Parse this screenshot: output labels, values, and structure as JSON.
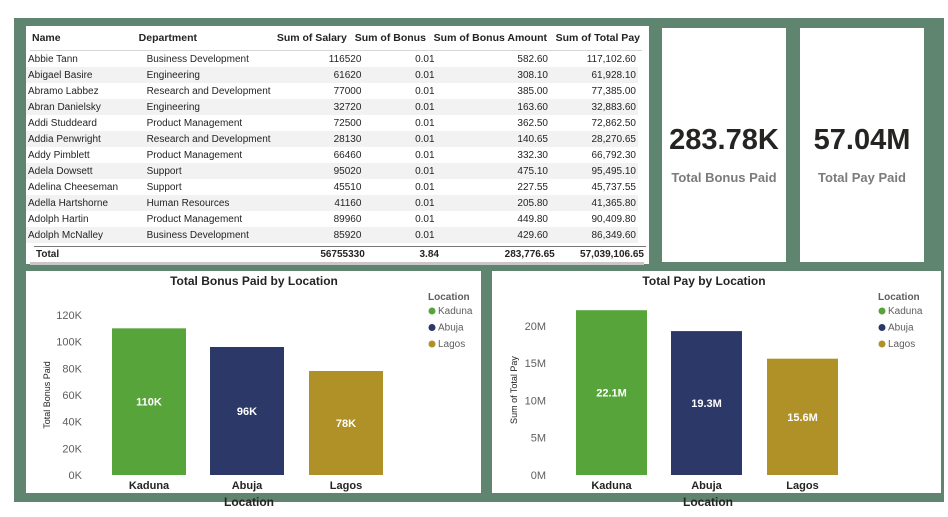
{
  "table": {
    "columns": [
      "Name",
      "Department",
      "Sum of Salary",
      "Sum of Bonus",
      "Sum of Bonus Amount",
      "Sum of Total Pay"
    ],
    "rows": [
      [
        "Abbie Tann",
        "Business Development",
        "116520",
        "0.01",
        "582.60",
        "117,102.60"
      ],
      [
        "Abigael Basire",
        "Engineering",
        "61620",
        "0.01",
        "308.10",
        "61,928.10"
      ],
      [
        "Abramo Labbez",
        "Research and Development",
        "77000",
        "0.01",
        "385.00",
        "77,385.00"
      ],
      [
        "Abran Danielsky",
        "Engineering",
        "32720",
        "0.01",
        "163.60",
        "32,883.60"
      ],
      [
        "Addi Studdeard",
        "Product Management",
        "72500",
        "0.01",
        "362.50",
        "72,862.50"
      ],
      [
        "Addia Penwright",
        "Research and Development",
        "28130",
        "0.01",
        "140.65",
        "28,270.65"
      ],
      [
        "Addy Pimblett",
        "Product Management",
        "66460",
        "0.01",
        "332.30",
        "66,792.30"
      ],
      [
        "Adela Dowsett",
        "Support",
        "95020",
        "0.01",
        "475.10",
        "95,495.10"
      ],
      [
        "Adelina Cheeseman",
        "Support",
        "45510",
        "0.01",
        "227.55",
        "45,737.55"
      ],
      [
        "Adella Hartshorne",
        "Human Resources",
        "41160",
        "0.01",
        "205.80",
        "41,365.80"
      ],
      [
        "Adolph Hartin",
        "Product Management",
        "89960",
        "0.01",
        "449.80",
        "90,409.80"
      ],
      [
        "Adolph McNalley",
        "Business Development",
        "85920",
        "0.01",
        "429.60",
        "86,349.60"
      ]
    ],
    "total": [
      "Total",
      "",
      "56755330",
      "3.84",
      "283,776.65",
      "57,039,106.65"
    ]
  },
  "kpis": {
    "bonus": {
      "value": "283.78K",
      "label": "Total Bonus Paid"
    },
    "pay": {
      "value": "57.04M",
      "label": "Total Pay Paid"
    }
  },
  "colors": {
    "Kaduna": "#56a43a",
    "Abuja": "#2c3867",
    "Lagos": "#af9127",
    "background": "#5f8470"
  },
  "chart_data": [
    {
      "type": "bar",
      "title": "Total Bonus Paid by Location",
      "xlabel": "Location",
      "ylabel": "Total Bonus Paid",
      "categories": [
        "Kaduna",
        "Abuja",
        "Lagos"
      ],
      "values": [
        110000,
        96000,
        78000
      ],
      "data_labels": [
        "110K",
        "96K",
        "78K"
      ],
      "ylim": [
        0,
        120000
      ],
      "yticks": [
        0,
        20000,
        40000,
        60000,
        80000,
        100000,
        120000
      ],
      "ytick_labels": [
        "0K",
        "20K",
        "40K",
        "60K",
        "80K",
        "100K",
        "120K"
      ],
      "legend": {
        "title": "Location",
        "placement": "top-right",
        "entries": [
          "Kaduna",
          "Abuja",
          "Lagos"
        ]
      },
      "grid": false
    },
    {
      "type": "bar",
      "title": "Total Pay by Location",
      "xlabel": "Location",
      "ylabel": "Sum of Total Pay",
      "categories": [
        "Kaduna",
        "Abuja",
        "Lagos"
      ],
      "values": [
        22100000,
        19300000,
        15600000
      ],
      "data_labels": [
        "22.1M",
        "19.3M",
        "15.6M"
      ],
      "ylim": [
        0,
        22800000
      ],
      "yticks": [
        0,
        5000000,
        10000000,
        15000000,
        20000000
      ],
      "ytick_labels": [
        "0M",
        "5M",
        "10M",
        "15M",
        "20M"
      ],
      "legend": {
        "title": "Location",
        "placement": "top-right",
        "entries": [
          "Kaduna",
          "Abuja",
          "Lagos"
        ]
      },
      "grid": false
    }
  ]
}
